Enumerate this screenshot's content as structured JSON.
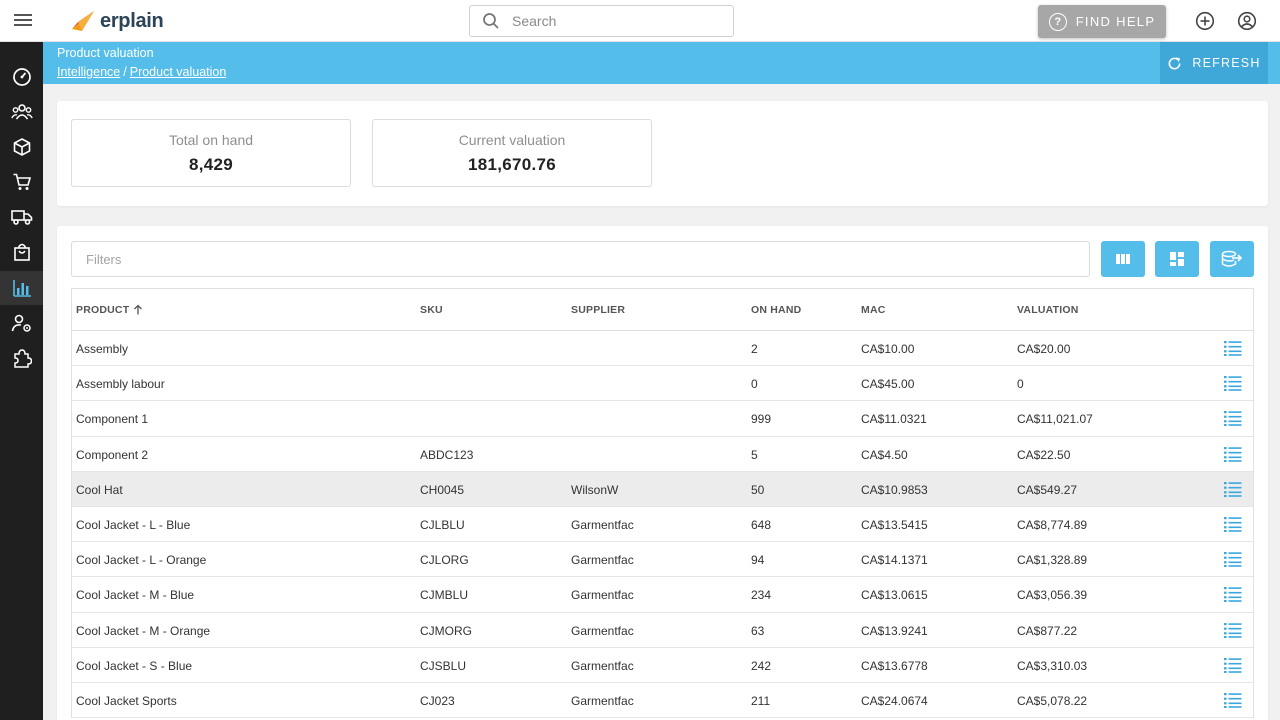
{
  "app": {
    "logo_text": "erplain",
    "search_placeholder": "Search",
    "find_help_label": "FIND HELP",
    "accent": "#55bdea",
    "sidebar_icons": [
      "dashboard-icon",
      "contacts-icon",
      "products-icon",
      "sales-icon",
      "purchases-icon",
      "orders-icon",
      "intelligence-icon",
      "user-settings-icon",
      "integrations-icon"
    ]
  },
  "header": {
    "title": "Product valuation",
    "breadcrumbs": [
      "Intelligence",
      "Product valuation"
    ],
    "separator": "/",
    "refresh_label": "REFRESH"
  },
  "stats": [
    {
      "label": "Total on hand",
      "value": "8,429"
    },
    {
      "label": "Current valuation",
      "value": "181,670.76"
    }
  ],
  "filters": {
    "placeholder": "Filters"
  },
  "table": {
    "columns": [
      "PRODUCT",
      "SKU",
      "SUPPLIER",
      "ON HAND",
      "MAC",
      "VALUATION"
    ],
    "rows": [
      {
        "product": "Assembly",
        "sku": "",
        "supplier": "",
        "on_hand": "2",
        "mac": "CA$10.00",
        "valuation": "CA$20.00"
      },
      {
        "product": "Assembly labour",
        "sku": "",
        "supplier": "",
        "on_hand": "0",
        "mac": "CA$45.00",
        "valuation": "0"
      },
      {
        "product": "Component 1",
        "sku": "",
        "supplier": "",
        "on_hand": "999",
        "mac": "CA$11.0321",
        "valuation": "CA$11,021.07"
      },
      {
        "product": "Component 2",
        "sku": "ABDC123",
        "supplier": "",
        "on_hand": "5",
        "mac": "CA$4.50",
        "valuation": "CA$22.50"
      },
      {
        "product": "Cool Hat",
        "sku": "CH0045",
        "supplier": "WilsonW",
        "on_hand": "50",
        "mac": "CA$10.9853",
        "valuation": "CA$549.27"
      },
      {
        "product": "Cool Jacket - L - Blue",
        "sku": "CJLBLU",
        "supplier": "Garmentfac",
        "on_hand": "648",
        "mac": "CA$13.5415",
        "valuation": "CA$8,774.89"
      },
      {
        "product": "Cool Jacket - L - Orange",
        "sku": "CJLORG",
        "supplier": "Garmentfac",
        "on_hand": "94",
        "mac": "CA$14.1371",
        "valuation": "CA$1,328.89"
      },
      {
        "product": "Cool Jacket - M - Blue",
        "sku": "CJMBLU",
        "supplier": "Garmentfac",
        "on_hand": "234",
        "mac": "CA$13.0615",
        "valuation": "CA$3,056.39"
      },
      {
        "product": "Cool Jacket - M - Orange",
        "sku": "CJMORG",
        "supplier": "Garmentfac",
        "on_hand": "63",
        "mac": "CA$13.9241",
        "valuation": "CA$877.22"
      },
      {
        "product": "Cool Jacket - S - Blue",
        "sku": "CJSBLU",
        "supplier": "Garmentfac",
        "on_hand": "242",
        "mac": "CA$13.6778",
        "valuation": "CA$3,310.03"
      },
      {
        "product": "Cool Jacket Sports",
        "sku": "CJ023",
        "supplier": "Garmentfac",
        "on_hand": "211",
        "mac": "CA$24.0674",
        "valuation": "CA$5,078.22"
      }
    ]
  }
}
